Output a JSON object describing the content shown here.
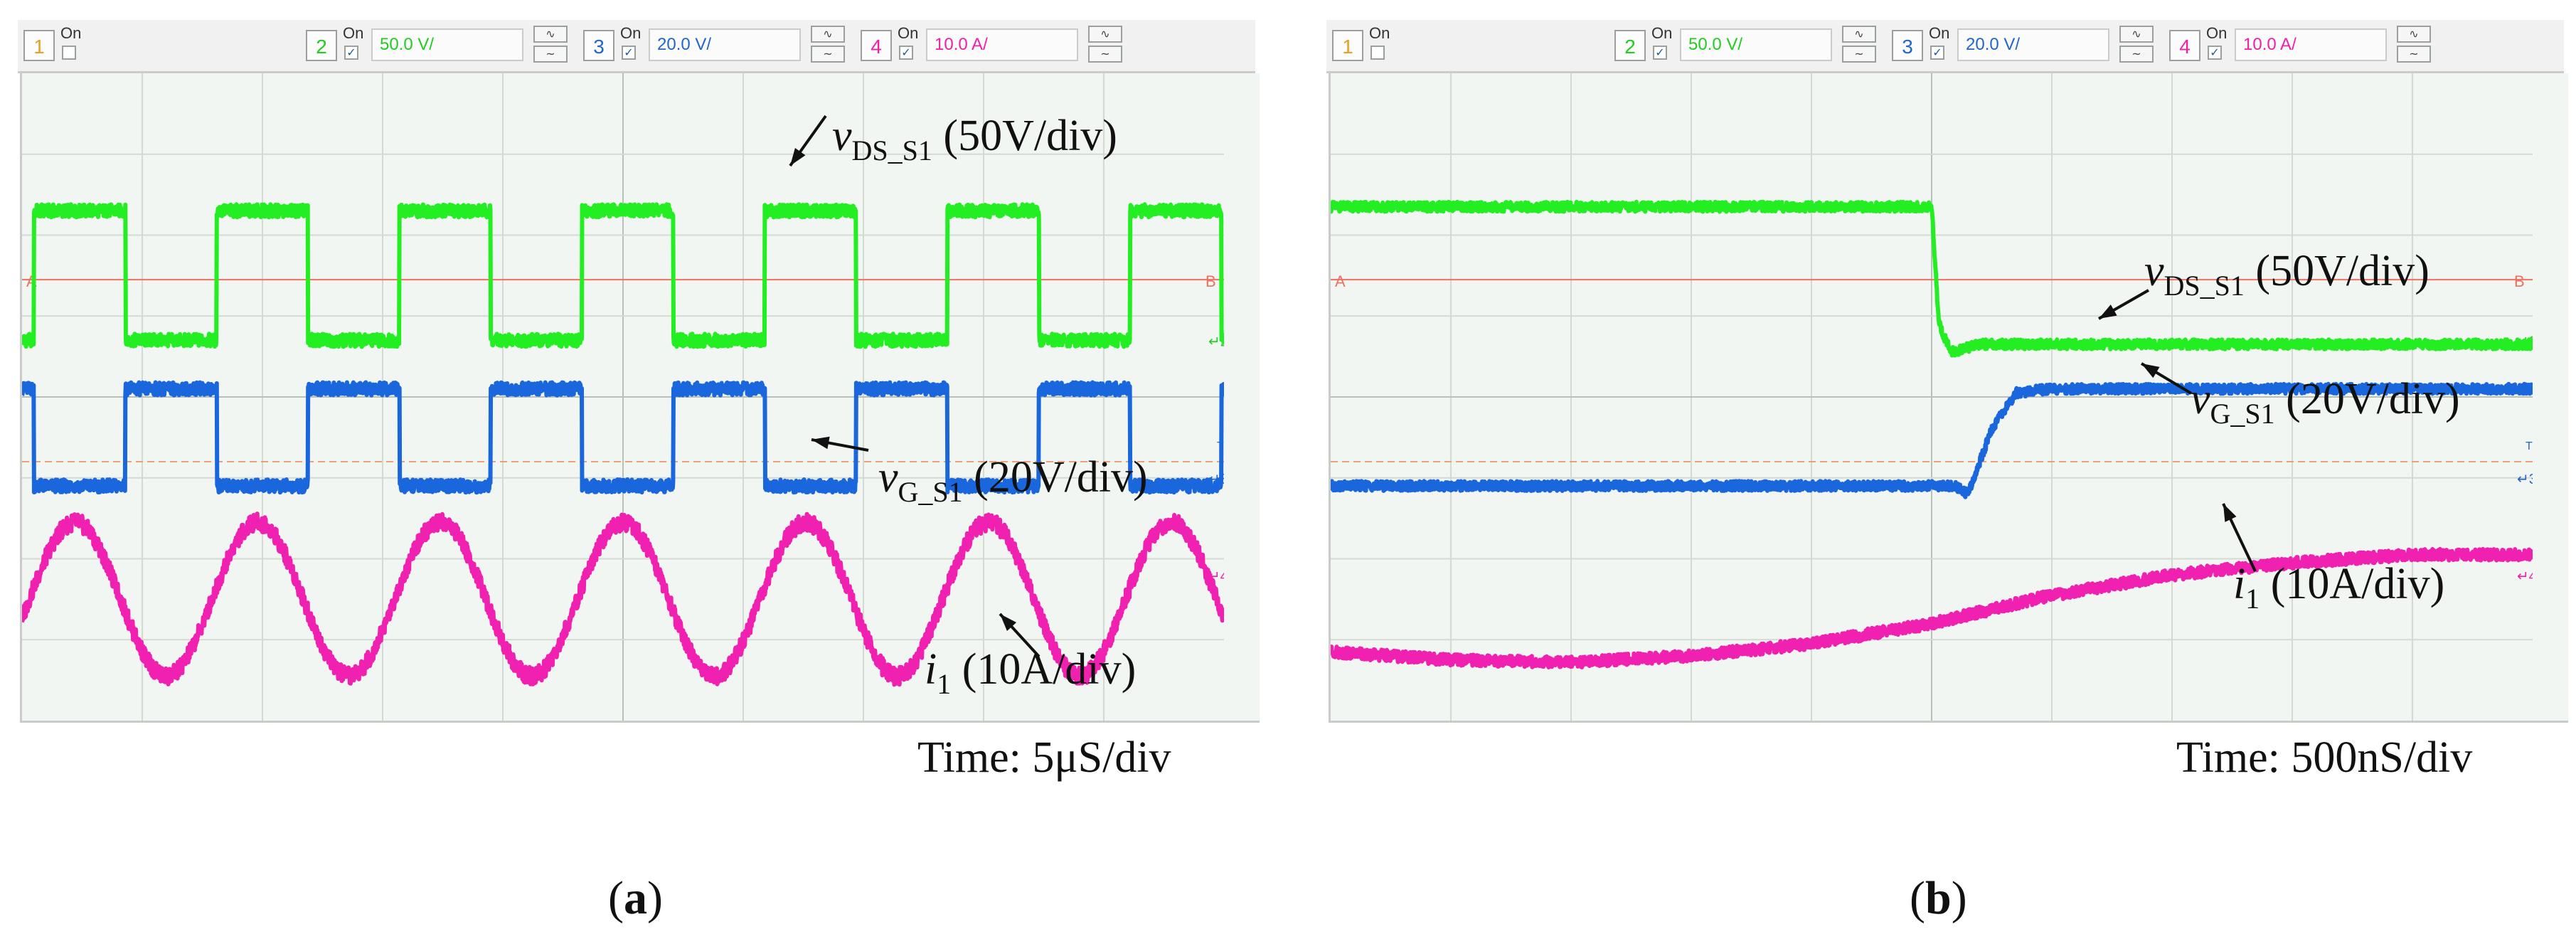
{
  "chart_data": [
    {
      "type": "line",
      "panel": "(a)",
      "caption_letter": "a",
      "timebase": "Time: 5μS/div",
      "header": {
        "channels": [
          {
            "num": "1",
            "on": "On",
            "checked": false,
            "scale": "",
            "color": "#e8a020"
          },
          {
            "num": "2",
            "on": "On",
            "checked": true,
            "scale": "50.0 V/",
            "color": "#22cc22"
          },
          {
            "num": "3",
            "on": "On",
            "checked": true,
            "scale": "20.0 V/",
            "color": "#2266cc"
          },
          {
            "num": "4",
            "on": "On",
            "checked": true,
            "scale": "10.0 A/",
            "color": "#ee22aa"
          }
        ]
      },
      "grid": {
        "x_divisions": 10,
        "y_divisions": 8
      },
      "markers": {
        "cursor_a": "A",
        "cursor_b": "B",
        "ch2": "2",
        "ch3": "3",
        "ch4": "4",
        "trigger": "T"
      },
      "series": [
        {
          "name": "vDS_S1 (50V/div)",
          "color": "#22ee22",
          "label_var": "v",
          "label_sub": "DS_S1",
          "label_rest": " (50V/div)",
          "waveform": "square",
          "period_us": 7.6,
          "phase_us": 0.5,
          "high_div": 6.3,
          "low_div": 4.7
        },
        {
          "name": "vG_S1 (20V/div)",
          "color": "#1a66dd",
          "label_var": "v",
          "label_sub": "G_S1",
          "label_rest": " (20V/div)",
          "waveform": "square",
          "period_us": 7.6,
          "phase_us": 4.3,
          "high_div": 4.1,
          "low_div": 2.9
        },
        {
          "name": "i1 (10A/div)",
          "color": "#f020b0",
          "label_var": "i",
          "label_sub": "1",
          "label_rest": " (10A/div)",
          "waveform": "sine",
          "period_us": 7.6,
          "center_div": 1.5,
          "amplitude_div": 0.95
        }
      ]
    },
    {
      "type": "line",
      "panel": "(b)",
      "caption_letter": "b",
      "timebase": "Time: 500nS/div",
      "header": {
        "channels": [
          {
            "num": "1",
            "on": "On",
            "checked": false,
            "scale": "",
            "color": "#e8a020"
          },
          {
            "num": "2",
            "on": "On",
            "checked": true,
            "scale": "50.0 V/",
            "color": "#22cc22"
          },
          {
            "num": "3",
            "on": "On",
            "checked": true,
            "scale": "20.0 V/",
            "color": "#2266cc"
          },
          {
            "num": "4",
            "on": "On",
            "checked": true,
            "scale": "10.0 A/",
            "color": "#ee22aa"
          }
        ]
      },
      "grid": {
        "x_divisions": 10,
        "y_divisions": 8
      },
      "markers": {
        "cursor_a": "A",
        "cursor_b": "B",
        "ch2": "2",
        "ch3": "3",
        "ch4": "4",
        "trigger": "T"
      },
      "series": [
        {
          "name": "vDS_S1 (50V/div)",
          "color": "#22ee22",
          "label_var": "v",
          "label_sub": "DS_S1",
          "label_rest": " (50V/div)",
          "points": [
            [
              0,
              6.35
            ],
            [
              2.5,
              6.35
            ],
            [
              2.53,
              4.9
            ],
            [
              2.58,
              4.55
            ],
            [
              2.7,
              4.65
            ],
            [
              5,
              4.65
            ]
          ]
        },
        {
          "name": "vG_S1 (20V/div)",
          "color": "#1a66dd",
          "label_var": "v",
          "label_sub": "G_S1",
          "label_rest": " (20V/div)",
          "points": [
            [
              0,
              2.9
            ],
            [
              2.6,
              2.9
            ],
            [
              2.65,
              2.8
            ],
            [
              2.75,
              3.6
            ],
            [
              2.85,
              4.05
            ],
            [
              3.0,
              4.1
            ],
            [
              5,
              4.1
            ]
          ]
        },
        {
          "name": "i1 (10A/div)",
          "color": "#f020b0",
          "label_var": "i",
          "label_sub": "1",
          "label_rest": " (10A/div)",
          "points": [
            [
              0,
              0.85
            ],
            [
              0.5,
              0.75
            ],
            [
              1.0,
              0.72
            ],
            [
              1.5,
              0.8
            ],
            [
              2.0,
              0.95
            ],
            [
              2.5,
              1.2
            ],
            [
              3.0,
              1.55
            ],
            [
              3.5,
              1.8
            ],
            [
              4.0,
              1.95
            ],
            [
              4.5,
              2.05
            ],
            [
              5,
              2.05
            ]
          ]
        }
      ]
    }
  ]
}
